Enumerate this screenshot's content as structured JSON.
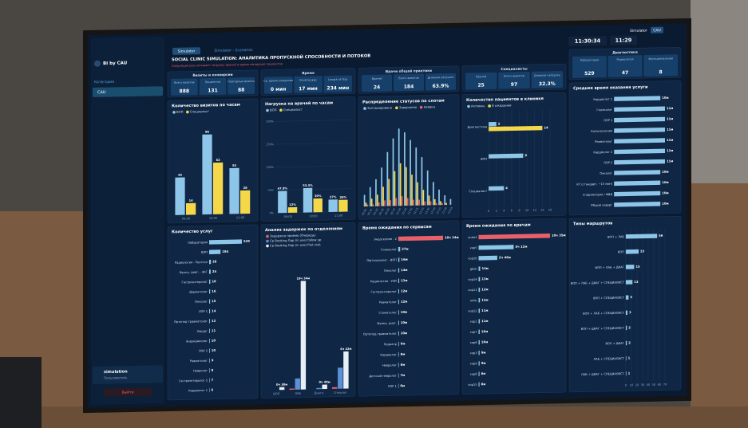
{
  "sidebar": {
    "brand": "BI by CAU",
    "section": "Категории",
    "item": "CAU",
    "user": "simulation",
    "role": "Пользователь",
    "logout": "Выйти"
  },
  "topbar": {
    "tabs": [
      "Simulator",
      "Simulator - Scenarios"
    ],
    "user": "Simulator",
    "org": "CAU",
    "time": "11:30:34",
    "time2": "11:29"
  },
  "header": {
    "title": "SOCIAL CLINIC SIMULATION: АНАЛИТИКА ПРОПУСКНОЙ СПОСОБНОСТИ И ПОТОКОВ",
    "subtitle": "Симуляция рассчитывает загрузку врачей и время ожидания пациентов"
  },
  "kpi_groups": [
    {
      "title": "Визиты и конверсии",
      "items": [
        {
          "label": "Всего визитов",
          "value": "888"
        },
        {
          "label": "Пациентов",
          "value": "131"
        },
        {
          "label": "Повторные визиты",
          "value": "88"
        }
      ]
    },
    {
      "title": "Время",
      "items": [
        {
          "label": "Ср. время ожидания",
          "value": "0 мин"
        },
        {
          "label": "Booking gap",
          "value": "17 мин"
        },
        {
          "label": "Length of stay",
          "value": "234 мин"
        }
      ]
    },
    {
      "title": "Врачи общей практики",
      "items": [
        {
          "label": "Врачей",
          "value": "24"
        },
        {
          "label": "Всего визитов",
          "value": "184"
        },
        {
          "label": "Дневная нагрузка",
          "value": "63.9%"
        }
      ]
    },
    {
      "title": "Специалисты",
      "items": [
        {
          "label": "Врачей",
          "value": "25"
        },
        {
          "label": "Всего визитов",
          "value": "97"
        },
        {
          "label": "Дневная нагрузка",
          "value": "32.3%"
        }
      ]
    },
    {
      "title": "Диагностика",
      "items": [
        {
          "label": "Лаборатория",
          "value": "529"
        },
        {
          "label": "Радиология",
          "value": "47"
        },
        {
          "label": "Функциональная",
          "value": "8"
        }
      ]
    }
  ],
  "panels": [
    {
      "title": "Количество визитов по часам",
      "type": "vbar",
      "show_values": true,
      "categories": [
        "09:00",
        "10:00",
        "11:00"
      ],
      "series": [
        {
          "name": "ВОП",
          "color": "#8ec6ea",
          "values": [
            45,
            96,
            55
          ]
        },
        {
          "name": "Специалист",
          "color": "#f5d84a",
          "values": [
            14,
            62,
            28
          ]
        }
      ],
      "ylim": [
        0,
        110
      ]
    },
    {
      "title": "Нагрузка на врачей по часам",
      "type": "vbar",
      "categories": [
        "09:00",
        "10:00",
        "11:00"
      ],
      "series": [
        {
          "name": "ВОП",
          "color": "#8ec6ea",
          "values": [
            47.9,
            53.3,
            27
          ],
          "value_labels": [
            "47.9%",
            "53.3%",
            "27%"
          ]
        },
        {
          "name": "Специалист",
          "color": "#f5d84a",
          "values": [
            12,
            30,
            26
          ],
          "value_labels": [
            "12%",
            "30%",
            "26%"
          ]
        }
      ],
      "ylim": [
        0,
        200
      ],
      "yticks": [
        {
          "value": 0,
          "label": "0%"
        },
        {
          "value": 50,
          "label": "50%"
        },
        {
          "value": 100,
          "label": "100%"
        },
        {
          "value": 150,
          "label": "150%"
        },
        {
          "value": 200,
          "label": "200%"
        }
      ]
    },
    {
      "title": "Распределение статусов по слотам",
      "type": "vbar",
      "categories": [
        "09:00",
        "09:15",
        "09:30",
        "09:45",
        "10:00",
        "10:15",
        "10:30",
        "10:45",
        "11:00",
        "11:15",
        "11:30",
        "11:45",
        "12:00",
        "12:15",
        "12:30",
        "12:45"
      ],
      "series": [
        {
          "name": "Запланировано",
          "color": "#8ec6ea",
          "values": [
            6,
            10,
            14,
            20,
            28,
            35,
            40,
            38,
            34,
            30,
            25,
            18,
            12,
            8,
            5,
            3
          ]
        },
        {
          "name": "Завершено",
          "color": "#f5d84a",
          "values": [
            2,
            4,
            6,
            10,
            14,
            18,
            22,
            20,
            16,
            12,
            8,
            5,
            3,
            2,
            1,
            0
          ]
        },
        {
          "name": "Неявка",
          "color": "#e8606a",
          "values": [
            1,
            1,
            2,
            3,
            3,
            4,
            5,
            4,
            3,
            3,
            2,
            2,
            1,
            1,
            0,
            0
          ]
        }
      ],
      "ylim": [
        0,
        45
      ]
    },
    {
      "title": "Количество пациентов в клинике",
      "type": "hbar",
      "categories": [
        "Диагностика",
        "ВОП",
        "Специалист"
      ],
      "series": [
        {
          "name": "Активны",
          "color": "#8ec6ea",
          "values": [
            2,
            9,
            4
          ]
        },
        {
          "name": "В ожидании",
          "color": "#f5d84a",
          "values": [
            14,
            null,
            null
          ]
        }
      ],
      "xlim": [
        0,
        16
      ],
      "xticks": [
        0,
        2,
        4,
        6,
        8,
        10,
        12,
        14,
        16
      ]
    },
    {
      "title": "Среднее время оказания услуги",
      "type": "hbar",
      "categories": [
        "Кардиолог 1",
        "Гинеколог",
        "ЛОР 1",
        "Колоноскопия",
        "Ревматолог",
        "Кардиолог 2",
        "ЛОР 2",
        "Онколог",
        "КТ (стандарт, ~15 мин)",
        "Спирометрия / ФВД",
        "Общий хирург"
      ],
      "series": [
        {
          "name": "Время",
          "color": "#8ec6ea",
          "values": [
            10,
            11,
            11,
            11,
            11,
            11,
            11,
            10,
            10,
            10,
            10
          ],
          "value_labels": [
            "10м",
            "11м",
            "11м",
            "11м",
            "11м",
            "11м",
            "11м",
            "10м",
            "10м",
            "10м",
            "10м"
          ]
        }
      ]
    },
    {
      "title": "Количество услуг",
      "type": "hbar",
      "categories": [
        "Лаборатория",
        "ВОП",
        "Радиология - Рентген",
        "Функц. диаг. - ЭКГ",
        "Гастроэнтеролог",
        "Дерматолог",
        "Онколог",
        "ЛОР 1",
        "Ортопед-травматолог",
        "Хирург",
        "Эндокринолог",
        "ЛОР 2",
        "Ревматолог",
        "Невролог",
        "Гастроэнтеролог 2",
        "Кардиолог 1"
      ],
      "series": [
        {
          "name": "Услуги",
          "color": "#8ec6ea",
          "values": [
            529,
            184,
            28,
            24,
            18,
            16,
            15,
            14,
            12,
            11,
            10,
            10,
            9,
            8,
            7,
            6
          ]
        }
      ]
    },
    {
      "title": "Анализ задержек по отделениям",
      "type": "vbar",
      "categories": [
        "ВОП",
        "ЛАБ",
        "Диагн.",
        "Специал."
      ],
      "series": [
        {
          "name": "Задержка приема (Очередь)",
          "color": "#e8606a",
          "values": [
            0,
            0.2,
            0,
            0.3
          ]
        },
        {
          "name": "Ср Booking Gap (in use) follow up",
          "color": "#5b8fd6",
          "values": [
            0,
            2,
            0.2,
            3.8
          ]
        },
        {
          "name": "Ср Booking Gap (in use) first visit",
          "color": "#e8eef5",
          "values": [
            0.5,
            19.57,
            0.8,
            6.7
          ],
          "value_labels": [
            "0ч 30м",
            "19ч 34м",
            "0ч 48м",
            "6ч 42м"
          ]
        }
      ],
      "ylim": [
        0,
        24
      ]
    },
    {
      "title": "Время ожидания по сервисам",
      "type": "hbar",
      "categories": [
        "Эндоскопия - 2",
        "Гинеколог",
        "Офтальмолог - ВОП",
        "Онколог",
        "Радиология - УЗИ",
        "Гастроэнтеролог",
        "Ревматолог",
        "Стоматолог",
        "Функц. диаг.",
        "Ортопед-травматолог",
        "Педиатр",
        "Кардиолог",
        "Невролог",
        "Детский невролог",
        "ЛОР 1"
      ],
      "series": [
        {
          "name": "Ожидание",
          "color": "#8ec6ea",
          "first_color": "#e8606a",
          "values": [
            634,
            27,
            16,
            14,
            13,
            12,
            12,
            10,
            10,
            10,
            9,
            8,
            8,
            7,
            6
          ],
          "value_labels": [
            "10ч 34м",
            "27м",
            "16м",
            "14м",
            "13м",
            "12м",
            "12м",
            "10м",
            "10м",
            "10м",
            "9м",
            "8м",
            "8м",
            "7м",
            "6м"
          ]
        }
      ]
    },
    {
      "title": "Время ожидания по врачам",
      "type": "hbar",
      "categories": [
        "endo2",
        "vop5",
        "vop10",
        "gbvk",
        "vop14",
        "vop11",
        "onko",
        "vop12",
        "vop1",
        "vop7",
        "vop6",
        "vop3",
        "vop9",
        "vop8",
        "vop15"
      ],
      "series": [
        {
          "name": "Ожидание",
          "color": "#8ec6ea",
          "first_color": "#e8606a",
          "values": [
            635,
            312,
            166,
            14,
            13,
            12,
            12,
            11,
            11,
            10,
            10,
            9,
            9,
            8,
            8
          ],
          "value_labels": [
            "10ч 35м",
            "5ч 12м",
            "2ч 46м",
            "14м",
            "13м",
            "12м",
            "12м",
            "11м",
            "11м",
            "10м",
            "10м",
            "9м",
            "9м",
            "8м",
            "8м"
          ]
        }
      ]
    },
    {
      "title": "Типы маршрутов",
      "type": "hbar",
      "categories": [
        "ВОП + ЛАБ",
        "ВОП",
        "ВОП + ЛАБ + ДИАГ",
        "ВОП + ЛАБ + ДИАГ + СПЕЦИАЛИСТ",
        "ВОП + СПЕЦИАЛИСТ",
        "ВОП + ЛАБ + СПЕЦИАЛИСТ",
        "ВОП + ДИАГ + СПЕЦИАЛИСТ",
        "ВОП + ДИАГ",
        "ЛАБ + СПЕЦИАЛИСТ",
        "ЛАБ + ДИАГ + СПЕЦИАЛИСТ"
      ],
      "series": [
        {
          "name": "Маршруты",
          "color": "#8ec6ea",
          "values": [
            56,
            23,
            15,
            12,
            5,
            3,
            2,
            2,
            1,
            1
          ]
        }
      ],
      "xlim": [
        0,
        70
      ],
      "xticks": [
        0,
        10,
        20,
        30,
        40,
        50,
        60,
        70
      ]
    }
  ]
}
